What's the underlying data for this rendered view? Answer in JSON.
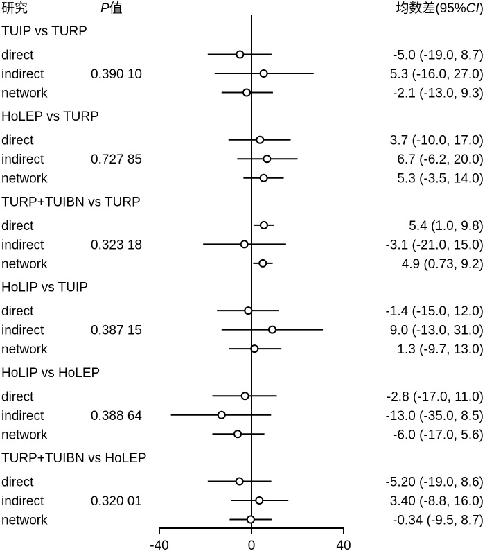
{
  "chart_data": {
    "type": "forest",
    "header": {
      "study": "研究",
      "p_italic": "P",
      "p_suffix": "值",
      "md_prefix": "均数差(95%",
      "md_ci_italic": "CI",
      "md_suffix": ")"
    },
    "xlim": [
      -40,
      40
    ],
    "xticks": [
      "-40",
      "0",
      "40"
    ],
    "reference_line": 0,
    "groups": [
      {
        "title": "TUIP vs TURP",
        "p_value": "0.390 10",
        "rows": [
          {
            "label": "direct",
            "est": -5.0,
            "lo": -19.0,
            "hi": 8.7,
            "text": "-5.0 (-19.0, 8.7)"
          },
          {
            "label": "indirect",
            "est": 5.3,
            "lo": -16.0,
            "hi": 27.0,
            "text": "5.3 (-16.0, 27.0)"
          },
          {
            "label": "network",
            "est": -2.1,
            "lo": -13.0,
            "hi": 9.3,
            "text": "-2.1 (-13.0, 9.3)"
          }
        ]
      },
      {
        "title": "HoLEP vs TURP",
        "p_value": "0.727 85",
        "rows": [
          {
            "label": "direct",
            "est": 3.7,
            "lo": -10.0,
            "hi": 17.0,
            "text": "3.7 (-10.0, 17.0)"
          },
          {
            "label": "indirect",
            "est": 6.7,
            "lo": -6.2,
            "hi": 20.0,
            "text": "6.7 (-6.2, 20.0)"
          },
          {
            "label": "network",
            "est": 5.3,
            "lo": -3.5,
            "hi": 14.0,
            "text": "5.3 (-3.5, 14.0)"
          }
        ]
      },
      {
        "title": "TURP+TUIBN vs TURP",
        "p_value": "0.323 18",
        "rows": [
          {
            "label": "direct",
            "est": 5.4,
            "lo": 1.0,
            "hi": 9.8,
            "text": "5.4 (1.0, 9.8)"
          },
          {
            "label": "indirect",
            "est": -3.1,
            "lo": -21.0,
            "hi": 15.0,
            "text": "-3.1 (-21.0, 15.0)"
          },
          {
            "label": "network",
            "est": 4.9,
            "lo": 0.73,
            "hi": 9.2,
            "text": "4.9 (0.73, 9.2)"
          }
        ]
      },
      {
        "title": "HoLIP vs TUIP",
        "p_value": "0.387 15",
        "rows": [
          {
            "label": "direct",
            "est": -1.4,
            "lo": -15.0,
            "hi": 12.0,
            "text": "-1.4 (-15.0, 12.0)"
          },
          {
            "label": "indirect",
            "est": 9.0,
            "lo": -13.0,
            "hi": 31.0,
            "text": "9.0 (-13.0, 31.0)"
          },
          {
            "label": "network",
            "est": 1.3,
            "lo": -9.7,
            "hi": 13.0,
            "text": "1.3 (-9.7, 13.0)"
          }
        ]
      },
      {
        "title": "HoLIP vs HoLEP",
        "p_value": "0.388 64",
        "rows": [
          {
            "label": "direct",
            "est": -2.8,
            "lo": -17.0,
            "hi": 11.0,
            "text": "-2.8 (-17.0, 11.0)"
          },
          {
            "label": "indirect",
            "est": -13.0,
            "lo": -35.0,
            "hi": 8.5,
            "text": "-13.0 (-35.0, 8.5)"
          },
          {
            "label": "network",
            "est": -6.0,
            "lo": -17.0,
            "hi": 5.6,
            "text": "-6.0 (-17.0, 5.6)"
          }
        ]
      },
      {
        "title": "TURP+TUIBN vs HoLEP",
        "p_value": "0.320 01",
        "rows": [
          {
            "label": "direct",
            "est": -5.2,
            "lo": -19.0,
            "hi": 8.6,
            "text": "-5.20 (-19.0, 8.6)"
          },
          {
            "label": "indirect",
            "est": 3.4,
            "lo": -8.8,
            "hi": 16.0,
            "text": "3.40 (-8.8, 16.0)"
          },
          {
            "label": "network",
            "est": -0.34,
            "lo": -9.5,
            "hi": 8.7,
            "text": "-0.34 (-9.5, 8.7)"
          }
        ]
      }
    ]
  }
}
